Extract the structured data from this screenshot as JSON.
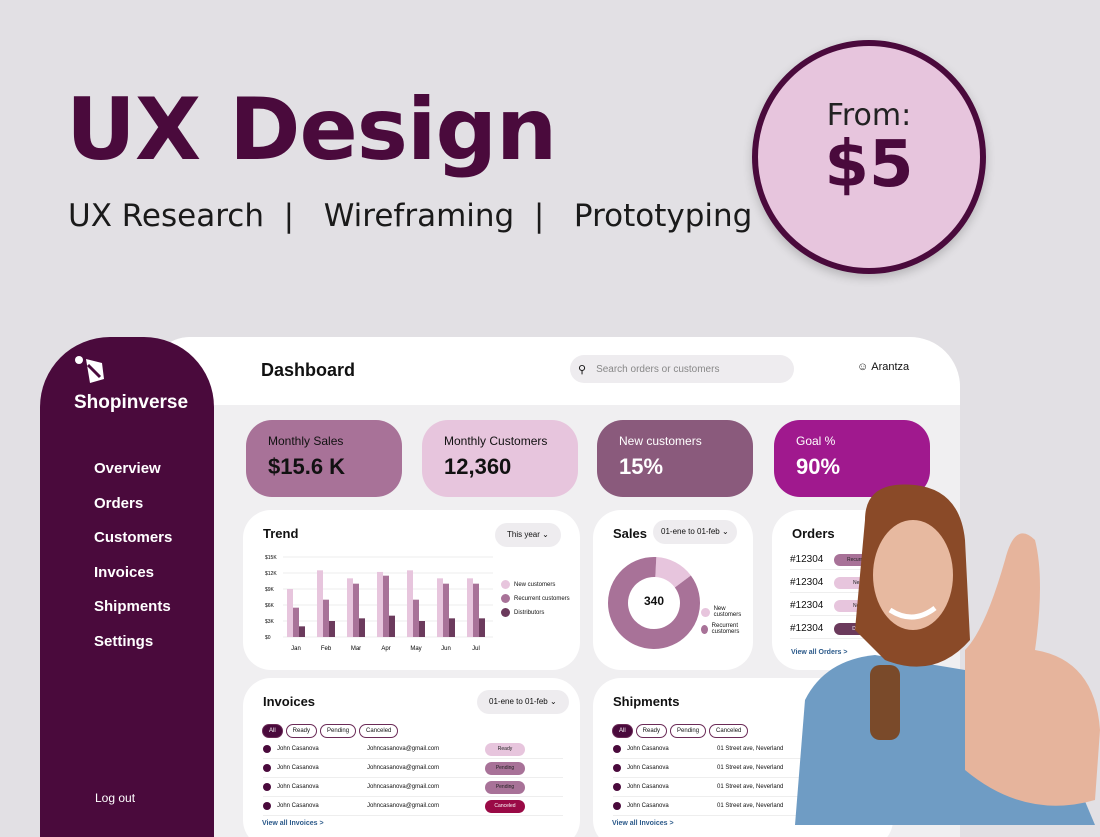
{
  "promo": {
    "title": "UX Design",
    "subtitle": "UX Research  |   Wireframing  |   Prototyping",
    "price_label": "From:",
    "price": "$5"
  },
  "colors": {
    "brand": "#4a0a3c",
    "light": "#e7c5dd",
    "mid": "#a87298",
    "dark": "#6b3a5c",
    "goal": "#a0198e"
  },
  "sidebar": {
    "brand": "Shopinverse",
    "items": [
      {
        "label": "Overview"
      },
      {
        "label": "Orders"
      },
      {
        "label": "Customers"
      },
      {
        "label": "Invoices"
      },
      {
        "label": "Shipments"
      },
      {
        "label": "Settings"
      }
    ],
    "logout": "Log out"
  },
  "header": {
    "title": "Dashboard",
    "search_placeholder": "Search orders or customers",
    "user": "Arantza"
  },
  "kpis": [
    {
      "label": "Monthly Sales",
      "value": "$15.6 K"
    },
    {
      "label": "Monthly Customers",
      "value": "12,360"
    },
    {
      "label": "New customers",
      "value": "15%"
    },
    {
      "label": "Goal %",
      "value": "90%"
    }
  ],
  "trend": {
    "title": "Trend",
    "range": "This year"
  },
  "sales": {
    "title": "Sales",
    "range": "01-ene to 01-feb",
    "center": "340"
  },
  "orders": {
    "title": "Orders",
    "items": [
      {
        "id": "#12304",
        "status": "Recurrent"
      },
      {
        "id": "#12304",
        "status": "New"
      },
      {
        "id": "#12304",
        "status": "New"
      },
      {
        "id": "#12304",
        "status": "Distri"
      }
    ],
    "link": "View all Orders >"
  },
  "invoices": {
    "title": "Invoices",
    "range": "01-ene to 01-feb",
    "filters": [
      "All",
      "Ready",
      "Pending",
      "Canceled"
    ],
    "rows": [
      {
        "name": "John Casanova",
        "email": "Johncasanova@gmail.com",
        "status": "Ready"
      },
      {
        "name": "John Casanova",
        "email": "Johncasanova@gmail.com",
        "status": "Pending"
      },
      {
        "name": "John Casanova",
        "email": "Johncasanova@gmail.com",
        "status": "Pending"
      },
      {
        "name": "John Casanova",
        "email": "Johncasanova@gmail.com",
        "status": "Canceled"
      }
    ],
    "link": "View all Invoices >"
  },
  "shipments": {
    "title": "Shipments",
    "filters": [
      "All",
      "Ready",
      "Pending",
      "Canceled"
    ],
    "rows": [
      {
        "name": "John Casanova",
        "address": "01 Street ave, Neverland"
      },
      {
        "name": "John Casanova",
        "address": "01 Street ave, Neverland"
      },
      {
        "name": "John Casanova",
        "address": "01 Street ave, Neverland"
      },
      {
        "name": "John Casanova",
        "address": "01 Street ave, Neverland"
      }
    ],
    "link": "View all Invoices >"
  },
  "chart_data": [
    {
      "type": "bar",
      "categories": [
        "Jan",
        "Feb",
        "Mar",
        "Apr",
        "May",
        "Jun",
        "Jul"
      ],
      "yticks": [
        "$0",
        "$3K",
        "$6K",
        "$9K",
        "$12K",
        "$15K"
      ],
      "ylim": [
        0,
        15000
      ],
      "grid": true,
      "legend": "right",
      "series": [
        {
          "name": "New customers",
          "color": "#e7c5dd",
          "values": [
            9000,
            12500,
            11000,
            12200,
            12500,
            11000,
            11000
          ]
        },
        {
          "name": "Recurrent customers",
          "color": "#a87298",
          "values": [
            5500,
            7000,
            10000,
            11500,
            7000,
            10000,
            10000
          ]
        },
        {
          "name": "Distributors",
          "color": "#6b3a5c",
          "values": [
            2000,
            3000,
            3500,
            4000,
            3000,
            3500,
            3500
          ]
        }
      ]
    },
    {
      "type": "pie",
      "donut": true,
      "legend": "right",
      "series": [
        {
          "name": "New customers",
          "color": "#e7c5dd",
          "value": 14
        },
        {
          "name": "Recurrent customers",
          "color": "#a87298",
          "value": 86
        }
      ]
    }
  ]
}
